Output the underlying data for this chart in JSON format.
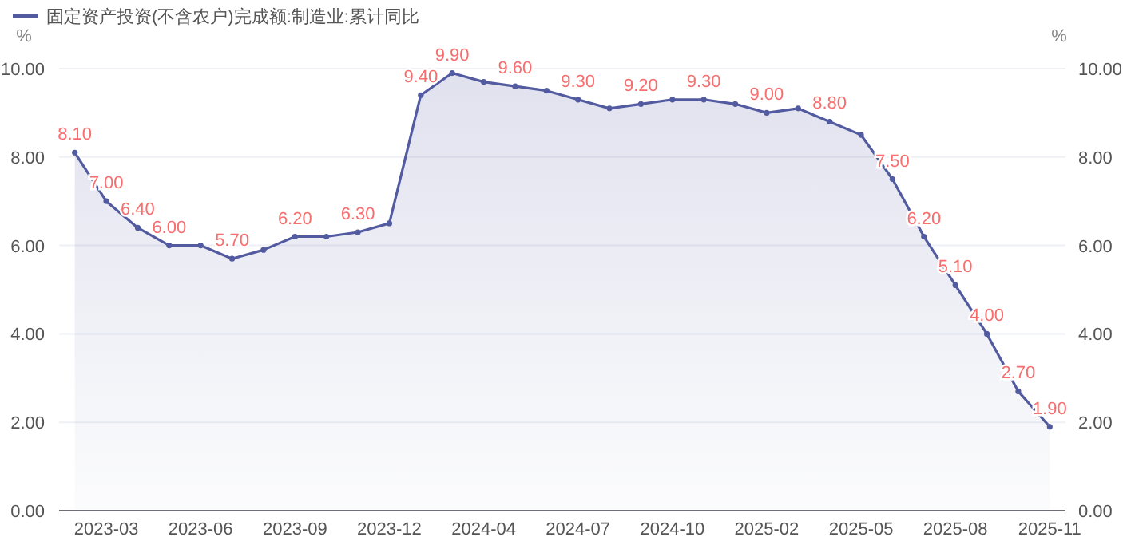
{
  "chart_data": {
    "type": "area",
    "legend": "top left",
    "ylabel": "%",
    "y2label": "%",
    "categories": [
      null,
      "2023-03",
      null,
      null,
      "2023-06",
      null,
      null,
      "2023-09",
      null,
      null,
      "2023-12",
      null,
      null,
      "2024-04",
      null,
      null,
      "2024-07",
      null,
      null,
      "2024-10",
      null,
      null,
      "2025-02",
      null,
      null,
      "2025-05",
      null,
      null,
      "2025-08",
      null,
      null,
      "2025-11"
    ],
    "series": [
      {
        "name": "固定资产投资(不含农户)完成额:制造业:累计同比",
        "color": "#535ba0",
        "values": [
          8.1,
          7.0,
          6.4,
          6.0,
          6.0,
          5.7,
          5.9,
          6.2,
          6.2,
          6.3,
          6.5,
          9.4,
          9.9,
          9.7,
          9.6,
          9.5,
          9.3,
          9.1,
          9.2,
          9.3,
          9.3,
          9.2,
          9.0,
          9.1,
          8.8,
          8.5,
          7.5,
          6.2,
          5.1,
          4.0,
          2.7,
          1.9
        ],
        "value_labels": [
          "8.10",
          "7.00",
          "6.40",
          "6.00",
          null,
          "5.70",
          null,
          "6.20",
          null,
          "6.30",
          null,
          "9.40",
          "9.90",
          null,
          "9.60",
          null,
          "9.30",
          null,
          "9.20",
          null,
          "9.30",
          null,
          "9.00",
          null,
          "8.80",
          null,
          "7.50",
          "6.20",
          "5.10",
          "4.00",
          "2.70",
          "1.90"
        ]
      }
    ],
    "ylim": [
      0,
      10
    ],
    "yticks": [
      {
        "value": 0,
        "label": "0.00"
      },
      {
        "value": 2,
        "label": "2.00"
      },
      {
        "value": 4,
        "label": "4.00"
      },
      {
        "value": 6,
        "label": "6.00"
      },
      {
        "value": 8,
        "label": "8.00"
      },
      {
        "value": 10,
        "label": "10.00"
      }
    ],
    "y2lim": [
      0,
      10
    ],
    "y2ticks": [
      {
        "value": 0,
        "label": "0.00"
      },
      {
        "value": 2,
        "label": "2.00"
      },
      {
        "value": 4,
        "label": "4.00"
      },
      {
        "value": 6,
        "label": "6.00"
      },
      {
        "value": 8,
        "label": "8.00"
      },
      {
        "value": 10,
        "label": "10.00"
      }
    ],
    "grid": "y",
    "marker": "circle"
  }
}
